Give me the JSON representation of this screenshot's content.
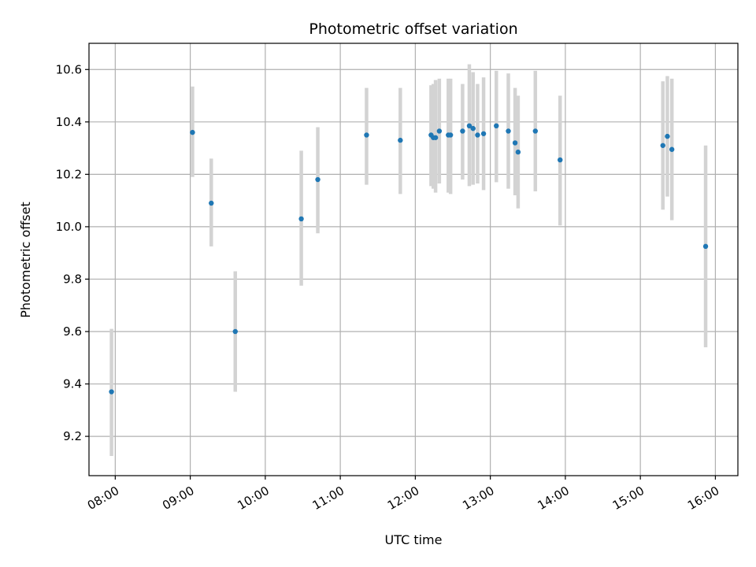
{
  "chart_data": {
    "type": "scatter",
    "title": "Photometric offset variation",
    "xlabel": "UTC time",
    "ylabel": "Photometric offset",
    "x_unit": "hours UTC",
    "xlim": [
      7.65,
      16.3
    ],
    "ylim": [
      9.05,
      10.7
    ],
    "grid": true,
    "x_ticks": [
      {
        "value": 8,
        "label": "08:00"
      },
      {
        "value": 9,
        "label": "09:00"
      },
      {
        "value": 10,
        "label": "10:00"
      },
      {
        "value": 11,
        "label": "11:00"
      },
      {
        "value": 12,
        "label": "12:00"
      },
      {
        "value": 13,
        "label": "13:00"
      },
      {
        "value": 14,
        "label": "14:00"
      },
      {
        "value": 15,
        "label": "15:00"
      },
      {
        "value": 16,
        "label": "16:00"
      }
    ],
    "y_ticks": [
      {
        "value": 9.2,
        "label": "9.2"
      },
      {
        "value": 9.4,
        "label": "9.4"
      },
      {
        "value": 9.6,
        "label": "9.6"
      },
      {
        "value": 9.8,
        "label": "9.8"
      },
      {
        "value": 10.0,
        "label": "10.0"
      },
      {
        "value": 10.2,
        "label": "10.2"
      },
      {
        "value": 10.4,
        "label": "10.4"
      },
      {
        "value": 10.6,
        "label": "10.6"
      }
    ],
    "point_color": "#1f77b4",
    "errorbar_color": "#d3d3d3",
    "points": [
      {
        "x": 7.95,
        "y": 9.37,
        "lo": 9.125,
        "hi": 9.61
      },
      {
        "x": 9.03,
        "y": 10.36,
        "lo": 10.19,
        "hi": 10.535
      },
      {
        "x": 9.28,
        "y": 10.09,
        "lo": 9.925,
        "hi": 10.26
      },
      {
        "x": 9.6,
        "y": 9.6,
        "lo": 9.37,
        "hi": 9.83
      },
      {
        "x": 10.48,
        "y": 10.03,
        "lo": 9.775,
        "hi": 10.29
      },
      {
        "x": 10.7,
        "y": 10.18,
        "lo": 9.975,
        "hi": 10.38
      },
      {
        "x": 11.35,
        "y": 10.35,
        "lo": 10.16,
        "hi": 10.53
      },
      {
        "x": 11.8,
        "y": 10.33,
        "lo": 10.125,
        "hi": 10.53
      },
      {
        "x": 12.21,
        "y": 10.35,
        "lo": 10.155,
        "hi": 10.54
      },
      {
        "x": 12.24,
        "y": 10.34,
        "lo": 10.145,
        "hi": 10.545
      },
      {
        "x": 12.27,
        "y": 10.34,
        "lo": 10.13,
        "hi": 10.56
      },
      {
        "x": 12.32,
        "y": 10.365,
        "lo": 10.165,
        "hi": 10.565
      },
      {
        "x": 12.44,
        "y": 10.35,
        "lo": 10.13,
        "hi": 10.565
      },
      {
        "x": 12.47,
        "y": 10.35,
        "lo": 10.125,
        "hi": 10.565
      },
      {
        "x": 12.63,
        "y": 10.365,
        "lo": 10.18,
        "hi": 10.545
      },
      {
        "x": 12.72,
        "y": 10.385,
        "lo": 10.155,
        "hi": 10.62
      },
      {
        "x": 12.77,
        "y": 10.375,
        "lo": 10.16,
        "hi": 10.59
      },
      {
        "x": 12.83,
        "y": 10.35,
        "lo": 10.165,
        "hi": 10.545
      },
      {
        "x": 12.91,
        "y": 10.355,
        "lo": 10.14,
        "hi": 10.57
      },
      {
        "x": 13.08,
        "y": 10.385,
        "lo": 10.17,
        "hi": 10.595
      },
      {
        "x": 13.24,
        "y": 10.365,
        "lo": 10.145,
        "hi": 10.585
      },
      {
        "x": 13.33,
        "y": 10.32,
        "lo": 10.12,
        "hi": 10.53
      },
      {
        "x": 13.37,
        "y": 10.285,
        "lo": 10.07,
        "hi": 10.5
      },
      {
        "x": 13.6,
        "y": 10.365,
        "lo": 10.135,
        "hi": 10.595
      },
      {
        "x": 13.93,
        "y": 10.255,
        "lo": 10.005,
        "hi": 10.5
      },
      {
        "x": 15.3,
        "y": 10.31,
        "lo": 10.065,
        "hi": 10.555
      },
      {
        "x": 15.36,
        "y": 10.345,
        "lo": 10.115,
        "hi": 10.575
      },
      {
        "x": 15.42,
        "y": 10.295,
        "lo": 10.025,
        "hi": 10.565
      },
      {
        "x": 15.87,
        "y": 9.925,
        "lo": 9.54,
        "hi": 10.31
      }
    ]
  }
}
